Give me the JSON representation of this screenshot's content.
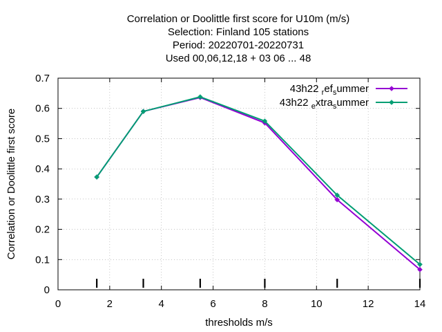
{
  "chart_data": {
    "type": "line",
    "title_lines": [
      "Correlation or Doolittle first score  for U10m (m/s)",
      "Selection: Finland    105 stations",
      "Period: 20220701-20220731",
      "Used  00,06,12,18  + 03 06 ... 48"
    ],
    "xlabel": "thresholds m/s",
    "ylabel": "Correlation or Doolittle first score",
    "xlim": [
      0,
      14
    ],
    "ylim": [
      0,
      0.7
    ],
    "xticks": [
      0,
      2,
      4,
      6,
      8,
      10,
      12,
      14
    ],
    "yticks": [
      0,
      0.1,
      0.2,
      0.3,
      0.4,
      0.5,
      0.6,
      0.7
    ],
    "grid": true,
    "legend_position": "top-right",
    "threshold_markers": [
      1.5,
      3.3,
      5.5,
      8,
      10.8,
      14
    ],
    "series": [
      {
        "name": "43h22 ref summer",
        "legend_parts": [
          "43h22 ",
          "r",
          "ef",
          "s",
          "ummer"
        ],
        "color": "#9400d3",
        "x": [
          1.5,
          3.3,
          5.5,
          8,
          10.8,
          14
        ],
        "y": [
          0.373,
          0.59,
          0.636,
          0.552,
          0.298,
          0.067
        ]
      },
      {
        "name": "43h22 extra summer",
        "legend_parts": [
          "43h22 ",
          "e",
          "xtra",
          "s",
          "ummer"
        ],
        "color": "#009e73",
        "x": [
          1.5,
          3.3,
          5.5,
          8,
          10.8,
          14
        ],
        "y": [
          0.373,
          0.59,
          0.638,
          0.558,
          0.313,
          0.084
        ]
      }
    ]
  }
}
